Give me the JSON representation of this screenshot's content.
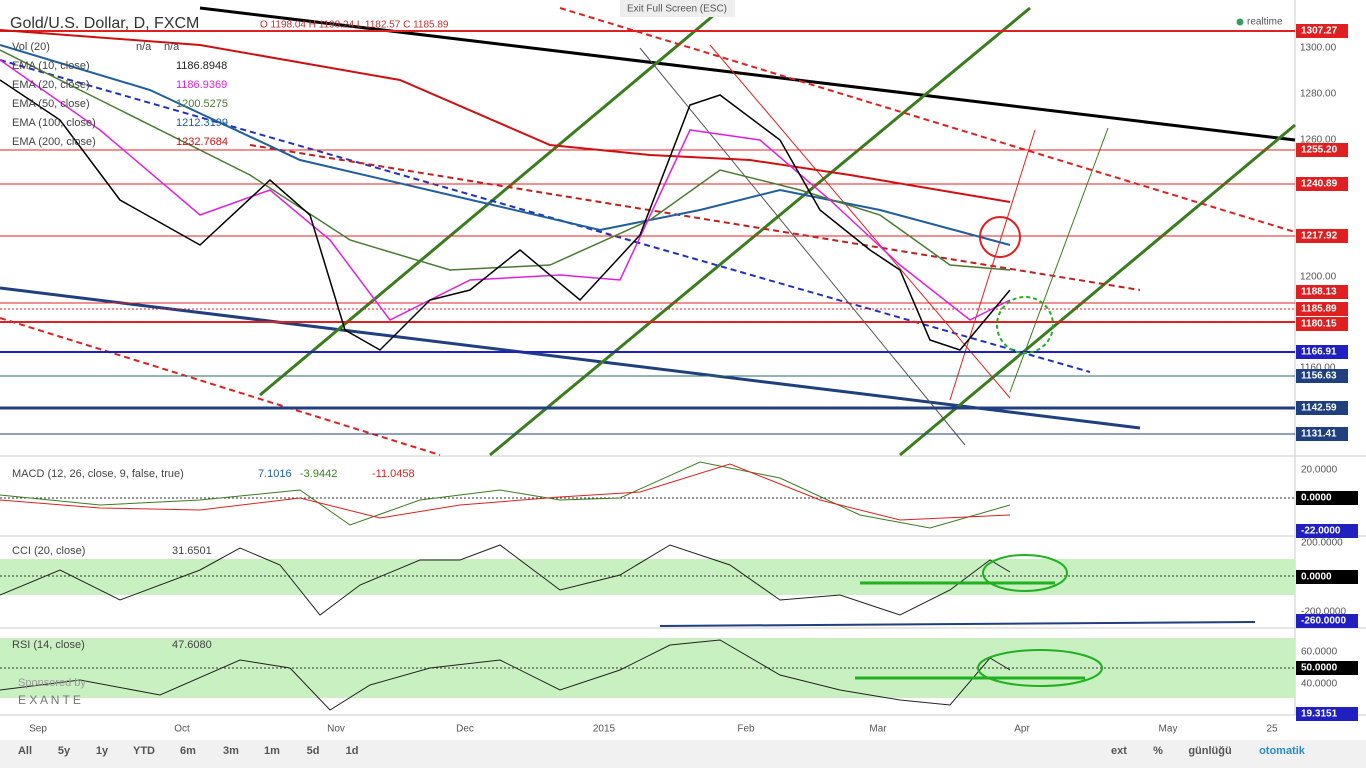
{
  "header": {
    "title": "Gold/U.S. Dollar, D, FXCM",
    "ohlc": "O 1198.04 H 1198.24 L 1182.57 C 1185.89",
    "exit": "Exit Full Screen (ESC)",
    "status": "realtime"
  },
  "indicators": [
    {
      "name": "Vol (20)",
      "value": "n/a",
      "value2": "n/a"
    },
    {
      "name": "EMA (10, close)",
      "value": "1186.8948"
    },
    {
      "name": "EMA (20, close)",
      "value": "1186.9369"
    },
    {
      "name": "EMA (50, close)",
      "value": "1200.5275"
    },
    {
      "name": "EMA (100, close)",
      "value": "1212.3199"
    },
    {
      "name": "EMA (200, close)",
      "value": "1232.7684"
    }
  ],
  "price_axis": [
    "1300.00",
    "1280.00",
    "1260.00",
    "1200.00",
    "1160.00"
  ],
  "price_labels": [
    "1307.27",
    "1255.20",
    "1240.89",
    "1217.92",
    "1188.13",
    "1185.89",
    "1180.15",
    "1166.91",
    "1156.63",
    "1142.59",
    "1131.41"
  ],
  "macd": {
    "name": "MACD (12, 26, close, 9, false, true)",
    "values": [
      "7.1016",
      "-3.9442",
      "-11.0458"
    ],
    "axis": [
      "20.0000",
      "0.0000",
      "-22.0000"
    ]
  },
  "cci": {
    "name": "CCI (20, close)",
    "value": "31.6501",
    "axis": [
      "200.0000",
      "0.0000",
      "-200.0000",
      "-260.0000"
    ]
  },
  "rsi": {
    "name": "RSI (14, close)",
    "value": "47.6080",
    "axis": [
      "60.0000",
      "50.0000",
      "40.0000",
      "19.3151"
    ]
  },
  "sponsor": {
    "text": "Sponsored by",
    "brand": "E X A N T E"
  },
  "time_axis": [
    "Sep",
    "Oct",
    "Nov",
    "Dec",
    "2015",
    "Feb",
    "Mar",
    "Apr",
    "May",
    "25"
  ],
  "toolbar": {
    "ranges": [
      "All",
      "5y",
      "1y",
      "YTD",
      "6m",
      "3m",
      "1m",
      "5d",
      "1d"
    ],
    "right": [
      "ext",
      "%",
      "günlüğü",
      "otomatik"
    ]
  }
}
